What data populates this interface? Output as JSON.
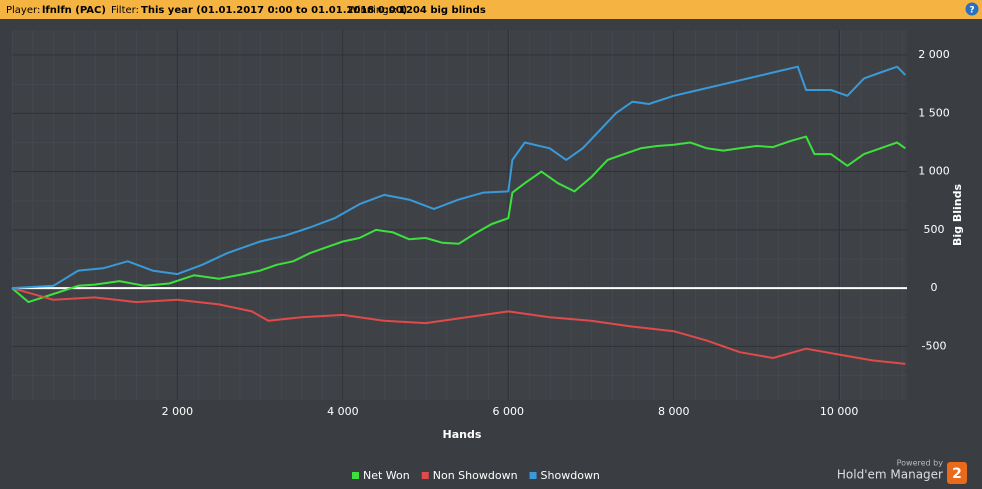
{
  "header": {
    "player_label": "Player:",
    "player": "lfnlfn (PAC)",
    "filter_label": "Filter:",
    "filter": "This year (01.01.2017 0:00 to 01.01.2018 0:00)",
    "winnings_label": "Winnings:",
    "winnings": "1204 big blinds",
    "help": "?"
  },
  "branding": {
    "powered_by": "Powered by",
    "product": "Hold'em Manager",
    "logo": "2"
  },
  "chart_data": {
    "type": "line",
    "x_label": "Hands",
    "y_label": "Big Blinds",
    "xlim": [
      0,
      10820
    ],
    "ylim": [
      -960,
      2215
    ],
    "xticks": [
      {
        "value": 2000,
        "label": "2 000"
      },
      {
        "value": 4000,
        "label": "4 000"
      },
      {
        "value": 6000,
        "label": "6 000"
      },
      {
        "value": 8000,
        "label": "8 000"
      },
      {
        "value": 10000,
        "label": "10 000"
      }
    ],
    "yticks": [
      -500,
      0,
      500,
      {
        "value": 1000,
        "label": "1 000"
      },
      {
        "value": 1500,
        "label": "1 500"
      },
      {
        "value": 2000,
        "label": "2 000"
      }
    ],
    "grid": true,
    "legend": "bottom",
    "series": [
      {
        "name": "Net Won",
        "color": "#3ee03e",
        "x": [
          0,
          200,
          500,
          800,
          1000,
          1300,
          1600,
          1900,
          2200,
          2500,
          2800,
          3000,
          3200,
          3400,
          3600,
          3800,
          4000,
          4200,
          4400,
          4600,
          4800,
          5000,
          5200,
          5400,
          5600,
          5800,
          6000,
          6050,
          6200,
          6400,
          6600,
          6800,
          7000,
          7200,
          7400,
          7600,
          7800,
          8000,
          8200,
          8400,
          8600,
          8800,
          9000,
          9200,
          9400,
          9600,
          9700,
          9900,
          10100,
          10300,
          10500,
          10700,
          10800
        ],
        "values": [
          0,
          -120,
          -50,
          20,
          30,
          60,
          20,
          40,
          110,
          80,
          120,
          150,
          200,
          230,
          300,
          350,
          400,
          430,
          500,
          480,
          420,
          430,
          390,
          380,
          470,
          550,
          600,
          820,
          900,
          1000,
          900,
          830,
          950,
          1100,
          1150,
          1200,
          1220,
          1230,
          1250,
          1200,
          1180,
          1200,
          1220,
          1210,
          1260,
          1300,
          1150,
          1150,
          1050,
          1150,
          1200,
          1250,
          1200
        ]
      },
      {
        "name": "Non Showdown",
        "color": "#e04a4a",
        "x": [
          0,
          500,
          1000,
          1500,
          2000,
          2500,
          2900,
          3100,
          3500,
          4000,
          4500,
          5000,
          5500,
          6000,
          6500,
          7000,
          7500,
          8000,
          8400,
          8800,
          9200,
          9600,
          10000,
          10400,
          10800
        ],
        "values": [
          0,
          -100,
          -80,
          -120,
          -100,
          -140,
          -200,
          -280,
          -250,
          -230,
          -280,
          -300,
          -250,
          -200,
          -250,
          -280,
          -330,
          -370,
          -450,
          -550,
          -600,
          -520,
          -570,
          -620,
          -650
        ]
      },
      {
        "name": "Showdown",
        "color": "#3a9ad9",
        "x": [
          0,
          500,
          800,
          1100,
          1400,
          1700,
          2000,
          2300,
          2600,
          3000,
          3300,
          3600,
          3900,
          4200,
          4500,
          4800,
          5100,
          5400,
          5700,
          6000,
          6050,
          6200,
          6500,
          6700,
          6900,
          7100,
          7300,
          7500,
          7700,
          8000,
          8300,
          8600,
          8900,
          9200,
          9500,
          9600,
          9900,
          10100,
          10300,
          10500,
          10700,
          10800
        ],
        "values": [
          0,
          20,
          150,
          170,
          230,
          150,
          120,
          200,
          300,
          400,
          450,
          520,
          600,
          720,
          800,
          760,
          680,
          760,
          820,
          830,
          1100,
          1250,
          1200,
          1100,
          1200,
          1350,
          1500,
          1600,
          1580,
          1650,
          1700,
          1750,
          1800,
          1850,
          1900,
          1700,
          1700,
          1650,
          1800,
          1850,
          1900,
          1830
        ]
      }
    ]
  }
}
